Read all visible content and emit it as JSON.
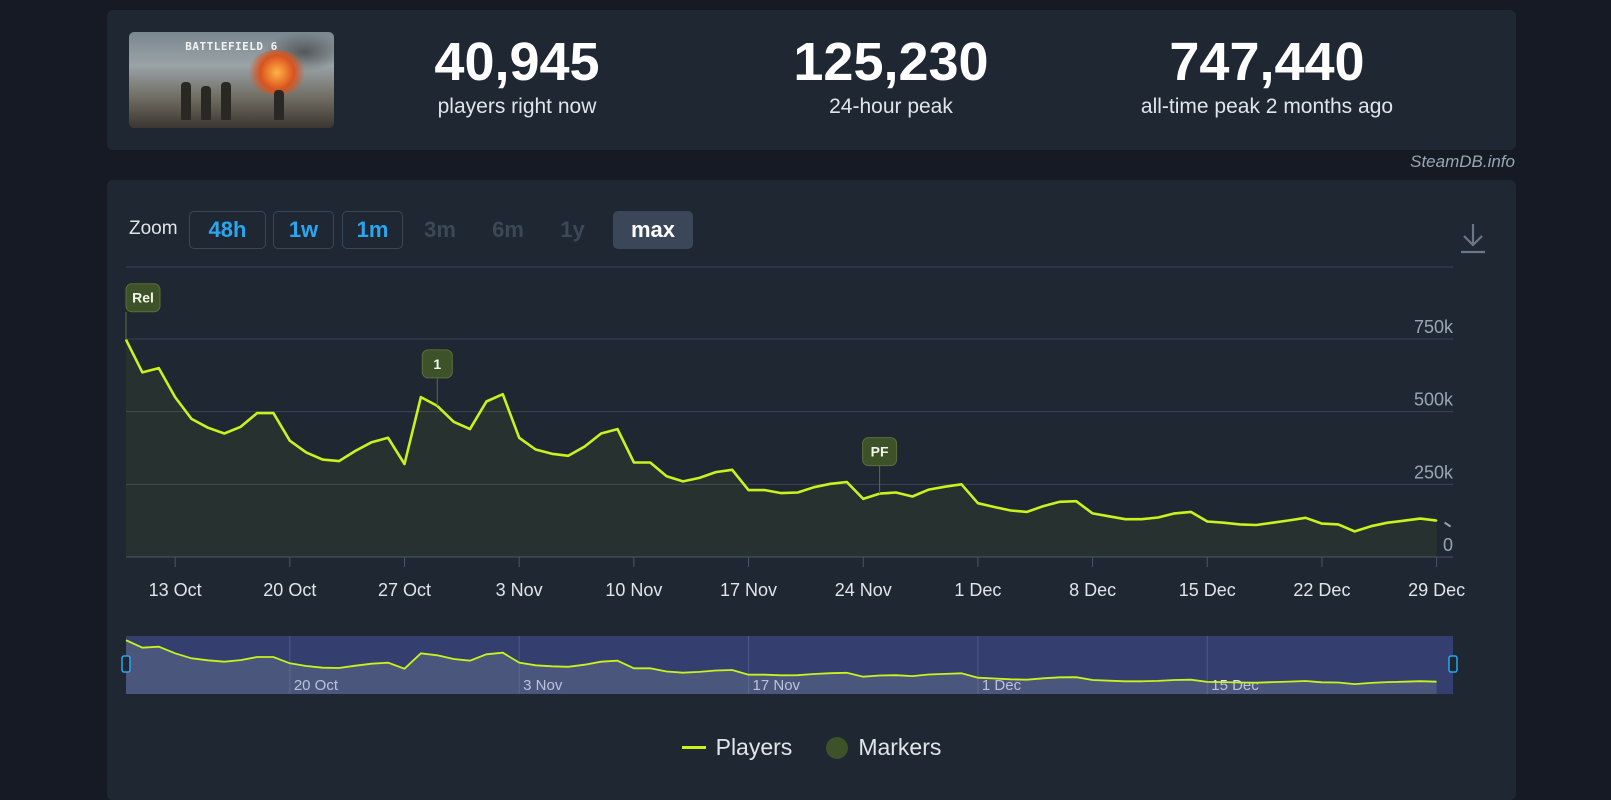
{
  "header": {
    "game_title": "BATTLEFIELD 6",
    "stats": [
      {
        "value": "40,945",
        "label": "players right now"
      },
      {
        "value": "125,230",
        "label": "24-hour peak"
      },
      {
        "value": "747,440",
        "label": "all-time peak 2 months ago"
      }
    ],
    "site": "SteamDB.info"
  },
  "zoom": {
    "label": "Zoom",
    "buttons": [
      {
        "label": "48h",
        "state": "enabled"
      },
      {
        "label": "1w",
        "state": "enabled"
      },
      {
        "label": "1m",
        "state": "enabled"
      },
      {
        "label": "3m",
        "state": "disabled"
      },
      {
        "label": "6m",
        "state": "disabled"
      },
      {
        "label": "1y",
        "state": "disabled"
      },
      {
        "label": "max",
        "state": "active"
      }
    ]
  },
  "icons": {
    "download": "download-icon"
  },
  "colors": {
    "line": "#c9f31d",
    "marker": "#3d5228",
    "navigator_mask": "#343f70"
  },
  "chart_data": {
    "type": "line",
    "title": "",
    "xlabel": "",
    "ylabel": "",
    "x_start": "2025-10-10",
    "x_end": "2025-12-30",
    "ylim": [
      0,
      750000
    ],
    "yticks": [
      0,
      250000,
      500000,
      750000
    ],
    "ytick_labels": [
      "0",
      "250k",
      "500k",
      "750k"
    ],
    "xticks": [
      "2025-10-13",
      "2025-10-20",
      "2025-10-27",
      "2025-11-03",
      "2025-11-10",
      "2025-11-17",
      "2025-11-24",
      "2025-12-01",
      "2025-12-08",
      "2025-12-15",
      "2025-12-22",
      "2025-12-29"
    ],
    "xtick_labels": [
      "13 Oct",
      "20 Oct",
      "27 Oct",
      "3 Nov",
      "10 Nov",
      "17 Nov",
      "24 Nov",
      "1 Dec",
      "8 Dec",
      "15 Dec",
      "22 Dec",
      "29 Dec"
    ],
    "grid": true,
    "series": [
      {
        "name": "Players",
        "dates": [
          "2025-10-10",
          "2025-10-11",
          "2025-10-12",
          "2025-10-13",
          "2025-10-14",
          "2025-10-15",
          "2025-10-16",
          "2025-10-17",
          "2025-10-18",
          "2025-10-19",
          "2025-10-20",
          "2025-10-21",
          "2025-10-22",
          "2025-10-23",
          "2025-10-24",
          "2025-10-25",
          "2025-10-26",
          "2025-10-27",
          "2025-10-28",
          "2025-10-29",
          "2025-10-30",
          "2025-10-31",
          "2025-11-01",
          "2025-11-02",
          "2025-11-03",
          "2025-11-04",
          "2025-11-05",
          "2025-11-06",
          "2025-11-07",
          "2025-11-08",
          "2025-11-09",
          "2025-11-10",
          "2025-11-11",
          "2025-11-12",
          "2025-11-13",
          "2025-11-14",
          "2025-11-15",
          "2025-11-16",
          "2025-11-17",
          "2025-11-18",
          "2025-11-19",
          "2025-11-20",
          "2025-11-21",
          "2025-11-22",
          "2025-11-23",
          "2025-11-24",
          "2025-11-25",
          "2025-11-26",
          "2025-11-27",
          "2025-11-28",
          "2025-11-29",
          "2025-11-30",
          "2025-12-01",
          "2025-12-02",
          "2025-12-03",
          "2025-12-04",
          "2025-12-05",
          "2025-12-06",
          "2025-12-07",
          "2025-12-08",
          "2025-12-09",
          "2025-12-10",
          "2025-12-11",
          "2025-12-12",
          "2025-12-13",
          "2025-12-14",
          "2025-12-15",
          "2025-12-16",
          "2025-12-17",
          "2025-12-18",
          "2025-12-19",
          "2025-12-20",
          "2025-12-21",
          "2025-12-22",
          "2025-12-23",
          "2025-12-24",
          "2025-12-25",
          "2025-12-26",
          "2025-12-27",
          "2025-12-28",
          "2025-12-29"
        ],
        "values": [
          747440,
          635000,
          650000,
          550000,
          475000,
          445000,
          425000,
          448000,
          495000,
          495000,
          400000,
          360000,
          335000,
          330000,
          365000,
          395000,
          410000,
          320000,
          550000,
          520000,
          465000,
          440000,
          535000,
          560000,
          410000,
          370000,
          355000,
          348000,
          380000,
          425000,
          440000,
          325000,
          325000,
          278000,
          260000,
          272000,
          292000,
          300000,
          230000,
          230000,
          220000,
          222000,
          240000,
          252000,
          258000,
          200000,
          218000,
          222000,
          208000,
          232000,
          242000,
          250000,
          185000,
          172000,
          160000,
          155000,
          175000,
          190000,
          192000,
          150000,
          140000,
          130000,
          130000,
          136000,
          150000,
          155000,
          122000,
          118000,
          112000,
          110000,
          118000,
          126000,
          135000,
          115000,
          112000,
          88000,
          106000,
          118000,
          125000,
          132000,
          125230
        ]
      }
    ],
    "markers": [
      {
        "label": "Rel",
        "date": "2025-10-10"
      },
      {
        "label": "1",
        "date": "2025-10-29"
      },
      {
        "label": "PF",
        "date": "2025-11-25"
      }
    ],
    "navigator": {
      "xtick_labels": [
        "20 Oct",
        "3 Nov",
        "17 Nov",
        "1 Dec",
        "15 Dec"
      ],
      "xticks": [
        "2025-10-20",
        "2025-11-03",
        "2025-11-17",
        "2025-12-01",
        "2025-12-15"
      ]
    },
    "legend": {
      "position": "bottom-center",
      "items": [
        "Players",
        "Markers"
      ]
    }
  }
}
